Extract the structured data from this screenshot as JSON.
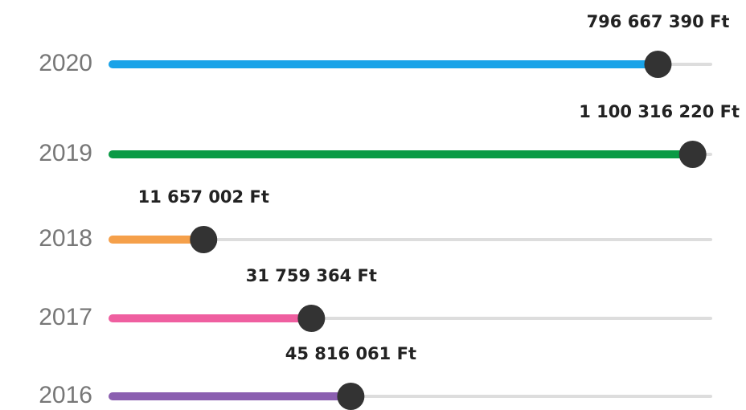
{
  "chart_data": {
    "type": "slider-bar",
    "categories": [
      "2020",
      "2019",
      "2018",
      "2017",
      "2016"
    ],
    "series": [
      {
        "values": [
          796667390,
          1100316220,
          11657002,
          31759364,
          45816061
        ],
        "value_labels": [
          "796 667 390 Ft",
          "1 100 316 220 Ft",
          "11 657 002 Ft",
          "31 759 364 Ft",
          "45 816 061 Ft"
        ],
        "colors": [
          "#1aa3e8",
          "#0a9a45",
          "#f5a04a",
          "#ef5fa0",
          "#8b5fb0"
        ]
      }
    ],
    "log_scale": true,
    "xlim": [
      5000000,
      1300000000
    ]
  }
}
